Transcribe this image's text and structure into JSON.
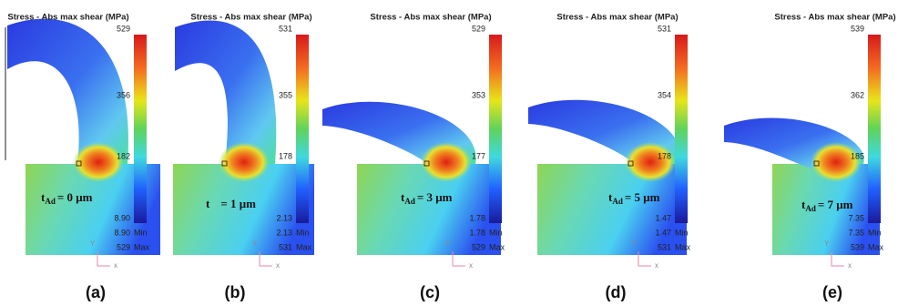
{
  "panels": [
    {
      "title": "Stress - Abs max shear (MPa)",
      "colorbar_labels": [
        "529",
        "356",
        "182",
        "8.90"
      ],
      "min_value": "8.90",
      "min_label": "Min",
      "max_value": "529",
      "max_label": "Max",
      "annotation": {
        "t": "t",
        "sub": "Ad",
        "rest": "= 0 μm"
      },
      "axis_y": "Y",
      "axis_x": "x",
      "caption": "(a)"
    },
    {
      "title": "Stress - Abs max shear (MPa)",
      "colorbar_labels": [
        "531",
        "355",
        "178",
        "2.13"
      ],
      "min_value": "2.13",
      "min_label": "Min",
      "max_value": "531",
      "max_label": "Max",
      "annotation": {
        "t": "t",
        "rest": "= 1 μm"
      },
      "axis_y": "Y",
      "axis_x": "x",
      "caption": "(b)"
    },
    {
      "title": "Stress - Abs max shear (MPa)",
      "colorbar_labels": [
        "529",
        "353",
        "177",
        "1.78"
      ],
      "min_value": "1.78",
      "min_label": "Min",
      "max_value": "529",
      "max_label": "Max",
      "annotation": {
        "t": "t",
        "sub": "Ad",
        "rest": "= 3 μm"
      },
      "axis_y": "Y",
      "axis_x": "x",
      "caption": "(c)"
    },
    {
      "title": "Stress - Abs max shear (MPa)",
      "colorbar_labels": [
        "531",
        "354",
        "178",
        "1.47"
      ],
      "min_value": "1.47",
      "min_label": "Min",
      "max_value": "531",
      "max_label": "Max",
      "annotation": {
        "t": "t",
        "sub": "Ad",
        "rest": "= 5 μm"
      },
      "axis_y": "Y",
      "axis_x": "x",
      "caption": "(d)"
    },
    {
      "title": "Stress - Abs max shear (MPa)",
      "colorbar_labels": [
        "539",
        "362",
        "185",
        "7.35"
      ],
      "min_value": "7.35",
      "min_label": "Min",
      "max_value": "539",
      "max_label": "Max",
      "annotation": {
        "t": "t",
        "sub": "Ad",
        "rest": "= 7 μm"
      },
      "axis_y": "Y",
      "axis_x": "x",
      "caption": "(e)"
    }
  ]
}
